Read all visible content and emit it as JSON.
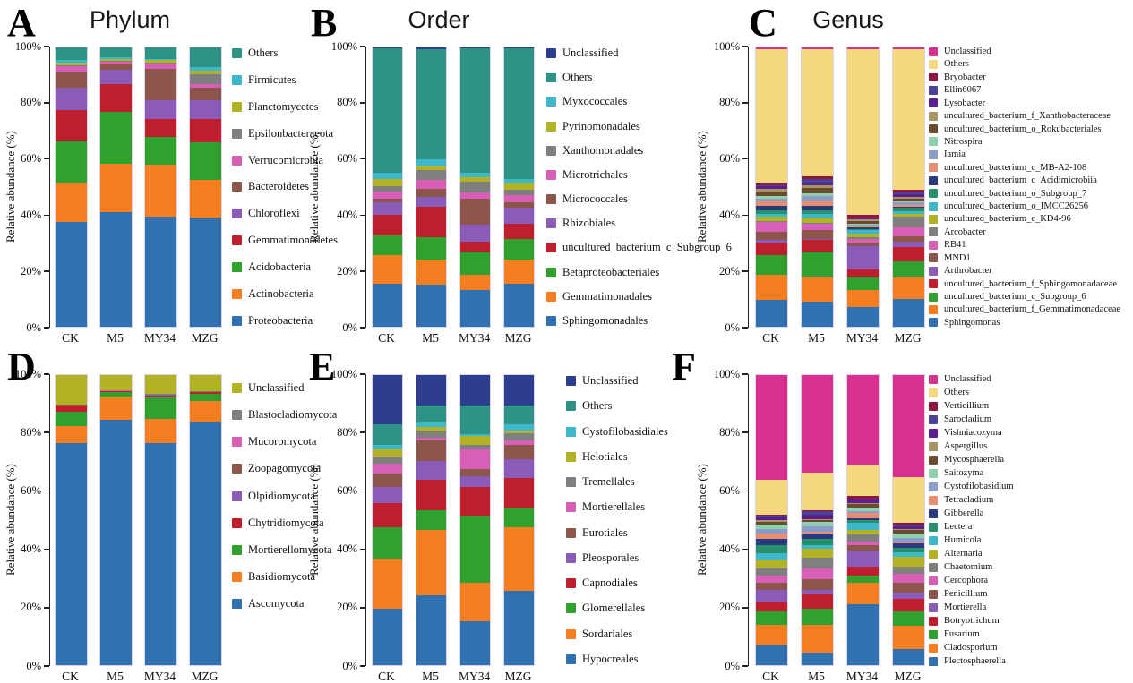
{
  "chart_data": [
    {
      "id": "A",
      "panel_letter": "A",
      "title": "Phylum",
      "type": "bar",
      "stacked": true,
      "ylabel": "Relative abundance (%)",
      "ylim": [
        0,
        100
      ],
      "yticks": [
        "0%",
        "20%",
        "40%",
        "60%",
        "80%",
        "100%"
      ],
      "categories": [
        "CK",
        "M5",
        "MY34",
        "MZG"
      ],
      "legend_position": "right",
      "series": [
        {
          "name": "Proteobacteria",
          "color": "#3271b0",
          "values": [
            37.5,
            41.0,
            39.5,
            39.0
          ]
        },
        {
          "name": "Actinobacteria",
          "color": "#f57e21",
          "values": [
            14.0,
            17.5,
            18.5,
            13.5
          ]
        },
        {
          "name": "Acidobacteria",
          "color": "#31a12e",
          "values": [
            15.0,
            18.5,
            10.0,
            13.5
          ]
        },
        {
          "name": "Gemmatimonadetes",
          "color": "#bf1e2d",
          "values": [
            11.0,
            10.0,
            6.5,
            8.5
          ]
        },
        {
          "name": "Chloroflexi",
          "color": "#8a5cb8",
          "values": [
            8.0,
            5.0,
            6.5,
            6.5
          ]
        },
        {
          "name": "Bacteroidetes",
          "color": "#8c564b",
          "values": [
            6.0,
            2.3,
            11.3,
            4.5
          ]
        },
        {
          "name": "Verrucomicrobia",
          "color": "#d75fb5",
          "values": [
            1.7,
            0.7,
            2.0,
            1.5
          ]
        },
        {
          "name": "Epsilonbacteraeota",
          "color": "#7f7f7f",
          "values": [
            0.3,
            0.2,
            0.2,
            3.5
          ]
        },
        {
          "name": "Planctomycetes",
          "color": "#b1b224",
          "values": [
            1.0,
            0.7,
            1.2,
            1.2
          ]
        },
        {
          "name": "Firmicutes",
          "color": "#3fb7ca",
          "values": [
            1.0,
            0.6,
            0.3,
            1.3
          ]
        },
        {
          "name": "Others",
          "color": "#2d9384",
          "values": [
            4.5,
            3.5,
            4.0,
            7.0
          ]
        }
      ]
    },
    {
      "id": "B",
      "panel_letter": "B",
      "title": "Order",
      "type": "bar",
      "stacked": true,
      "ylabel": "Relative abundance (%)",
      "ylim": [
        0,
        100
      ],
      "yticks": [
        "0%",
        "20%",
        "40%",
        "60%",
        "80%",
        "100%"
      ],
      "categories": [
        "CK",
        "M5",
        "MY34",
        "MZG"
      ],
      "legend_position": "right",
      "series": [
        {
          "name": "Sphingomonadales",
          "color": "#3271b0",
          "values": [
            15.5,
            15.0,
            13.0,
            15.5
          ]
        },
        {
          "name": "Gemmatimonadales",
          "color": "#f57e21",
          "values": [
            10.0,
            9.0,
            5.5,
            8.5
          ]
        },
        {
          "name": "Betaproteobacteriales",
          "color": "#31a12e",
          "values": [
            7.5,
            8.0,
            8.0,
            7.5
          ]
        },
        {
          "name": "uncultured_bacterium_c_Subgroup_6",
          "color": "#bf1e2d",
          "values": [
            7.0,
            11.0,
            4.0,
            5.5
          ]
        },
        {
          "name": "Rhizobiales",
          "color": "#8a5cb8",
          "values": [
            4.5,
            3.5,
            6.0,
            5.5
          ]
        },
        {
          "name": "Micrococcales",
          "color": "#8c564b",
          "values": [
            1.5,
            3.0,
            9.5,
            2.0
          ]
        },
        {
          "name": "Microtrichales",
          "color": "#d75fb5",
          "values": [
            2.5,
            3.0,
            2.0,
            2.5
          ]
        },
        {
          "name": "Xanthomonadales",
          "color": "#7f7f7f",
          "values": [
            2.0,
            3.5,
            4.0,
            2.0
          ]
        },
        {
          "name": "Pyrinomonadales",
          "color": "#b1b224",
          "values": [
            2.5,
            1.5,
            1.5,
            2.5
          ]
        },
        {
          "name": "Myxococcales",
          "color": "#3fb7ca",
          "values": [
            2.0,
            2.5,
            1.5,
            1.5
          ]
        },
        {
          "name": "Others",
          "color": "#2d9384",
          "values": [
            44.7,
            39.3,
            44.7,
            46.8
          ]
        },
        {
          "name": "Unclassified",
          "color": "#2e3e8e",
          "values": [
            0.3,
            0.7,
            0.3,
            0.2
          ]
        }
      ]
    },
    {
      "id": "C",
      "panel_letter": "C",
      "title": "Genus",
      "type": "bar",
      "stacked": true,
      "ylabel": "Relative abundance (%)",
      "ylim": [
        0,
        100
      ],
      "yticks": [
        "0%",
        "20%",
        "40%",
        "60%",
        "80%",
        "100%"
      ],
      "categories": [
        "CK",
        "M5",
        "MY34",
        "MZG"
      ],
      "legend_position": "right",
      "series": [
        {
          "name": "Sphingomonas",
          "color": "#3271b0",
          "values": [
            9.5,
            9.0,
            7.0,
            10.0
          ]
        },
        {
          "name": "uncultured_bacterium_f_Gemmatimonadaceae",
          "color": "#f57e21",
          "values": [
            9.0,
            8.5,
            6.0,
            7.5
          ]
        },
        {
          "name": "uncultured_bacterium_c_Subgroup_6",
          "color": "#31a12e",
          "values": [
            7.0,
            9.0,
            4.5,
            6.0
          ]
        },
        {
          "name": "uncultured_bacterium_f_Sphingomonadaceae",
          "color": "#bf1e2d",
          "values": [
            4.5,
            4.5,
            3.0,
            5.0
          ]
        },
        {
          "name": "Arthrobacter",
          "color": "#8a5cb8",
          "values": [
            1.0,
            0.5,
            8.5,
            2.0
          ]
        },
        {
          "name": "MND1",
          "color": "#8c564b",
          "values": [
            3.0,
            3.0,
            1.0,
            2.0
          ]
        },
        {
          "name": "RB41",
          "color": "#d75fb5",
          "values": [
            3.5,
            2.5,
            1.5,
            3.0
          ]
        },
        {
          "name": "Arcobacter",
          "color": "#7f7f7f",
          "values": [
            0.3,
            0.3,
            0.5,
            4.0
          ]
        },
        {
          "name": "uncultured_bacterium_c_KD4-96",
          "color": "#b1b224",
          "values": [
            1.5,
            1.5,
            1.5,
            1.0
          ]
        },
        {
          "name": "uncultured_bacterium_o_IMCC26256",
          "color": "#3fb7ca",
          "values": [
            1.0,
            1.5,
            1.0,
            1.0
          ]
        },
        {
          "name": "uncultured_bacterium_o_Subgroup_7",
          "color": "#28906c",
          "values": [
            1.5,
            1.5,
            0.5,
            1.0
          ]
        },
        {
          "name": "uncultured_bacterium_c_Acidimicrobiia",
          "color": "#2b3a7d",
          "values": [
            1.5,
            1.5,
            0.5,
            0.5
          ]
        },
        {
          "name": "uncultured_bacterium_c_MB-A2-108",
          "color": "#e78e71",
          "values": [
            1.5,
            2.0,
            0.5,
            0.5
          ]
        },
        {
          "name": "Iamia",
          "color": "#8b9cc9",
          "values": [
            1.0,
            1.5,
            0.5,
            1.0
          ]
        },
        {
          "name": "Nitrospira",
          "color": "#8fd1ad",
          "values": [
            1.0,
            1.0,
            0.5,
            0.5
          ]
        },
        {
          "name": "uncultured_bacterium_o_Rokubacteriales",
          "color": "#6b4a2e",
          "values": [
            1.5,
            2.0,
            1.0,
            1.0
          ]
        },
        {
          "name": "uncultured_bacterium_f_Xanthobacteraceae",
          "color": "#a79565",
          "values": [
            1.0,
            1.0,
            0.5,
            0.5
          ]
        },
        {
          "name": "Lysobacter",
          "color": "#5c1f8f",
          "values": [
            1.0,
            1.0,
            0.3,
            1.0
          ]
        },
        {
          "name": "Ellin6067",
          "color": "#4a4397",
          "values": [
            0.5,
            1.0,
            0.2,
            0.5
          ]
        },
        {
          "name": "Bryobacter",
          "color": "#8e1740",
          "values": [
            1.0,
            1.0,
            1.0,
            1.0
          ]
        },
        {
          "name": "Others",
          "color": "#f4d87e",
          "values": [
            47.7,
            45.7,
            59.5,
            50.5
          ]
        },
        {
          "name": "Unclassified",
          "color": "#d7308e",
          "values": [
            0.5,
            0.5,
            0.5,
            0.5
          ]
        }
      ]
    },
    {
      "id": "D",
      "panel_letter": "D",
      "title": "",
      "type": "bar",
      "stacked": true,
      "ylabel": "Relative abundance (%)",
      "ylim": [
        0,
        100
      ],
      "yticks": [
        "0%",
        "20%",
        "40%",
        "60%",
        "80%",
        "100%"
      ],
      "categories": [
        "CK",
        "M5",
        "MY34",
        "MZG"
      ],
      "legend_position": "right",
      "series": [
        {
          "name": "Ascomycota",
          "color": "#3271b0",
          "values": [
            76.5,
            84.5,
            76.5,
            84.0
          ]
        },
        {
          "name": "Basidiomycota",
          "color": "#f57e21",
          "values": [
            6.0,
            8.0,
            8.5,
            7.0
          ]
        },
        {
          "name": "Mortierellomycota",
          "color": "#31a12e",
          "values": [
            5.0,
            1.5,
            7.5,
            2.5
          ]
        },
        {
          "name": "Chytridiomycota",
          "color": "#bf1e2d",
          "values": [
            2.0,
            0.4,
            0.5,
            0.5
          ]
        },
        {
          "name": "Olpidiomycota",
          "color": "#8a5cb8",
          "values": [
            0.1,
            0.1,
            0.1,
            0.1
          ]
        },
        {
          "name": "Zoopagomycota",
          "color": "#8c564b",
          "values": [
            0.1,
            0.1,
            0.1,
            0.1
          ]
        },
        {
          "name": "Mucoromycota",
          "color": "#d75fb5",
          "values": [
            0.1,
            0.1,
            0.1,
            0.1
          ]
        },
        {
          "name": "Blastocladiomycota",
          "color": "#7f7f7f",
          "values": [
            0.1,
            0.1,
            0.1,
            0.1
          ]
        },
        {
          "name": "Unclassified",
          "color": "#b1b224",
          "values": [
            10.1,
            5.2,
            6.6,
            5.6
          ]
        }
      ]
    },
    {
      "id": "E",
      "panel_letter": "E",
      "title": "",
      "type": "bar",
      "stacked": true,
      "ylabel": "Relative abundance (%)",
      "ylim": [
        0,
        100
      ],
      "yticks": [
        "0%",
        "20%",
        "40%",
        "60%",
        "80%",
        "100%"
      ],
      "categories": [
        "CK",
        "M5",
        "MY34",
        "MZG"
      ],
      "legend_position": "right",
      "series": [
        {
          "name": "Hypocreales",
          "color": "#3271b0",
          "values": [
            19.5,
            24.0,
            15.0,
            25.5
          ]
        },
        {
          "name": "Sordariales",
          "color": "#f57e21",
          "values": [
            17.0,
            22.5,
            13.5,
            22.0
          ]
        },
        {
          "name": "Glomerellales",
          "color": "#31a12e",
          "values": [
            11.0,
            7.0,
            23.0,
            6.5
          ]
        },
        {
          "name": "Capnodiales",
          "color": "#bf1e2d",
          "values": [
            8.5,
            10.5,
            10.0,
            10.5
          ]
        },
        {
          "name": "Pleosporales",
          "color": "#8a5cb8",
          "values": [
            5.5,
            6.5,
            3.5,
            6.5
          ]
        },
        {
          "name": "Eurotiales",
          "color": "#8c564b",
          "values": [
            4.5,
            7.0,
            2.5,
            5.0
          ]
        },
        {
          "name": "Mortierellales",
          "color": "#d75fb5",
          "values": [
            3.5,
            1.0,
            7.0,
            1.5
          ]
        },
        {
          "name": "Tremellales",
          "color": "#7f7f7f",
          "values": [
            2.0,
            2.5,
            1.5,
            2.5
          ]
        },
        {
          "name": "Helotiales",
          "color": "#b1b224",
          "values": [
            3.0,
            1.0,
            3.0,
            1.0
          ]
        },
        {
          "name": "Cystofilobasidiales",
          "color": "#3fb7ca",
          "values": [
            1.5,
            2.0,
            0.5,
            2.0
          ]
        },
        {
          "name": "Others",
          "color": "#2d9384",
          "values": [
            7.0,
            5.5,
            10.0,
            6.5
          ]
        },
        {
          "name": "Unclassified",
          "color": "#2e3e8e",
          "values": [
            17.0,
            10.5,
            10.5,
            10.5
          ]
        }
      ]
    },
    {
      "id": "F",
      "panel_letter": "F",
      "title": "",
      "type": "bar",
      "stacked": true,
      "ylabel": "Relative abundance (%)",
      "ylim": [
        0,
        100
      ],
      "yticks": [
        "0%",
        "20%",
        "40%",
        "60%",
        "80%",
        "100%"
      ],
      "categories": [
        "CK",
        "M5",
        "MY34",
        "MZG"
      ],
      "legend_position": "right",
      "series": [
        {
          "name": "Plectosphaerella",
          "color": "#3271b0",
          "values": [
            7.0,
            4.0,
            21.0,
            5.5
          ]
        },
        {
          "name": "Cladosporium",
          "color": "#f57e21",
          "values": [
            7.0,
            10.0,
            7.5,
            8.0
          ]
        },
        {
          "name": "Fusarium",
          "color": "#31a12e",
          "values": [
            4.5,
            5.5,
            2.5,
            5.0
          ]
        },
        {
          "name": "Botryotrichum",
          "color": "#bf1e2d",
          "values": [
            3.5,
            5.0,
            3.0,
            4.5
          ]
        },
        {
          "name": "Mortierella",
          "color": "#8a5cb8",
          "values": [
            4.0,
            1.5,
            5.5,
            2.0
          ]
        },
        {
          "name": "Penicillium",
          "color": "#8c564b",
          "values": [
            2.5,
            3.5,
            2.0,
            3.5
          ]
        },
        {
          "name": "Cercophora",
          "color": "#d75fb5",
          "values": [
            2.5,
            4.0,
            1.0,
            3.0
          ]
        },
        {
          "name": "Chaetomium",
          "color": "#7f7f7f",
          "values": [
            2.5,
            3.5,
            2.5,
            2.5
          ]
        },
        {
          "name": "Alternaria",
          "color": "#b1b224",
          "values": [
            2.5,
            3.0,
            1.5,
            3.5
          ]
        },
        {
          "name": "Humicola",
          "color": "#3fb7ca",
          "values": [
            2.5,
            1.5,
            2.5,
            1.5
          ]
        },
        {
          "name": "Lectera",
          "color": "#28906c",
          "values": [
            3.0,
            2.0,
            1.0,
            1.5
          ]
        },
        {
          "name": "Gibberella",
          "color": "#2b3a7d",
          "values": [
            2.0,
            1.5,
            0.5,
            1.5
          ]
        },
        {
          "name": "Tetracladium",
          "color": "#e78e71",
          "values": [
            2.0,
            1.0,
            2.0,
            0.5
          ]
        },
        {
          "name": "Cystofilobasidium",
          "color": "#8b9cc9",
          "values": [
            1.5,
            2.0,
            0.5,
            1.5
          ]
        },
        {
          "name": "Saitozyma",
          "color": "#8fd1ad",
          "values": [
            1.5,
            1.5,
            1.0,
            1.5
          ]
        },
        {
          "name": "Mycosphaerella",
          "color": "#6b4a2e",
          "values": [
            1.0,
            0.5,
            1.5,
            1.0
          ]
        },
        {
          "name": "Aspergillus",
          "color": "#a79565",
          "values": [
            0.5,
            0.5,
            0.5,
            0.5
          ]
        },
        {
          "name": "Vishniacozyma",
          "color": "#5c1f8f",
          "values": [
            1.0,
            1.5,
            1.0,
            1.0
          ]
        },
        {
          "name": "Sarocladium",
          "color": "#4a4397",
          "values": [
            0.5,
            1.0,
            0.5,
            0.5
          ]
        },
        {
          "name": "Verticillium",
          "color": "#8e1740",
          "values": [
            0.5,
            0.5,
            1.0,
            0.5
          ]
        },
        {
          "name": "Others",
          "color": "#f4d87e",
          "values": [
            12.0,
            13.0,
            10.5,
            16.0
          ]
        },
        {
          "name": "Unclassified",
          "color": "#d7308e",
          "values": [
            36.0,
            33.5,
            31.0,
            35.0
          ]
        }
      ]
    }
  ]
}
